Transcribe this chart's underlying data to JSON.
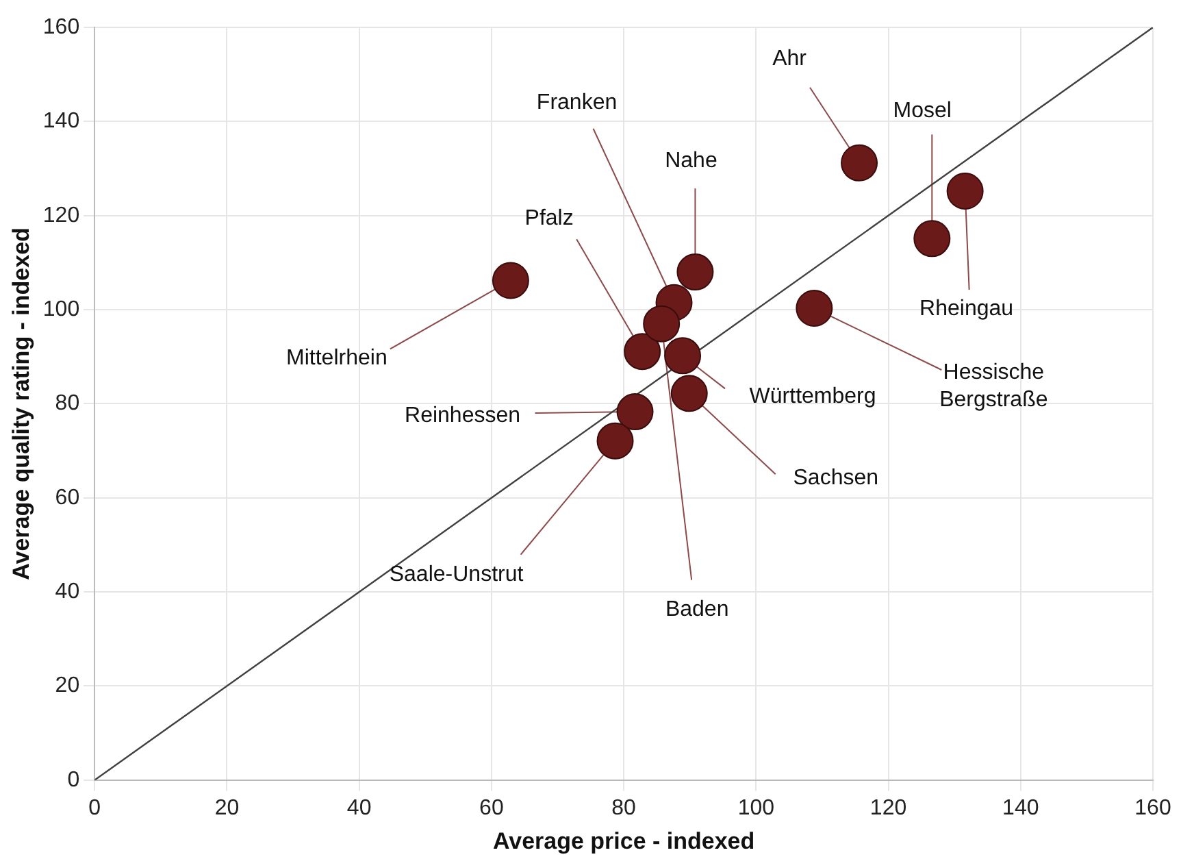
{
  "chart_data": {
    "type": "scatter",
    "xlabel": "Average price - indexed",
    "ylabel": "Average quality rating - indexed",
    "xlim": [
      0,
      160
    ],
    "ylim": [
      0,
      160
    ],
    "xticks": [
      0,
      20,
      40,
      60,
      80,
      100,
      120,
      140,
      160
    ],
    "yticks": [
      0,
      20,
      40,
      60,
      80,
      100,
      120,
      140,
      160
    ],
    "grid": true,
    "legend": false,
    "marker": "circle",
    "series": [
      {
        "type": "line",
        "color": "#404040",
        "marker": "none",
        "x": [
          0,
          160
        ],
        "values": [
          0,
          160
        ]
      },
      {
        "type": "scatter",
        "color": "#6b1a1a",
        "x": [
          115.6,
          126.6,
          131.6,
          108.8,
          62.9,
          90.8,
          87.6,
          82.8,
          85.7,
          88.9,
          81.7,
          89.9,
          78.7
        ],
        "values": [
          131.2,
          115.1,
          125.2,
          100.3,
          106.2,
          108.0,
          101.5,
          91.1,
          97.0,
          90.2,
          78.3,
          82.2,
          72.1
        ]
      }
    ],
    "annotations": [
      {
        "text": "Ahr",
        "x": 115.6,
        "y": 131.2
      },
      {
        "text": "Mosel",
        "x": 126.6,
        "y": 115.1
      },
      {
        "text": "Rheingau",
        "x": 131.6,
        "y": 125.2
      },
      {
        "text": "Hessische Bergstraße",
        "x": 108.8,
        "y": 100.3
      },
      {
        "text": "Mittelrhein",
        "x": 62.9,
        "y": 106.2
      },
      {
        "text": "Nahe",
        "x": 90.8,
        "y": 108.0
      },
      {
        "text": "Franken",
        "x": 87.6,
        "y": 101.5
      },
      {
        "text": "Pfalz",
        "x": 82.8,
        "y": 91.1
      },
      {
        "text": "Baden",
        "x": 85.7,
        "y": 97.0
      },
      {
        "text": "Württemberg",
        "x": 88.9,
        "y": 90.2
      },
      {
        "text": "Reinhessen",
        "x": 81.7,
        "y": 78.3
      },
      {
        "text": "Sachsen",
        "x": 89.9,
        "y": 82.2
      },
      {
        "text": "Saale-Unstrut",
        "x": 78.7,
        "y": 72.1
      }
    ]
  }
}
